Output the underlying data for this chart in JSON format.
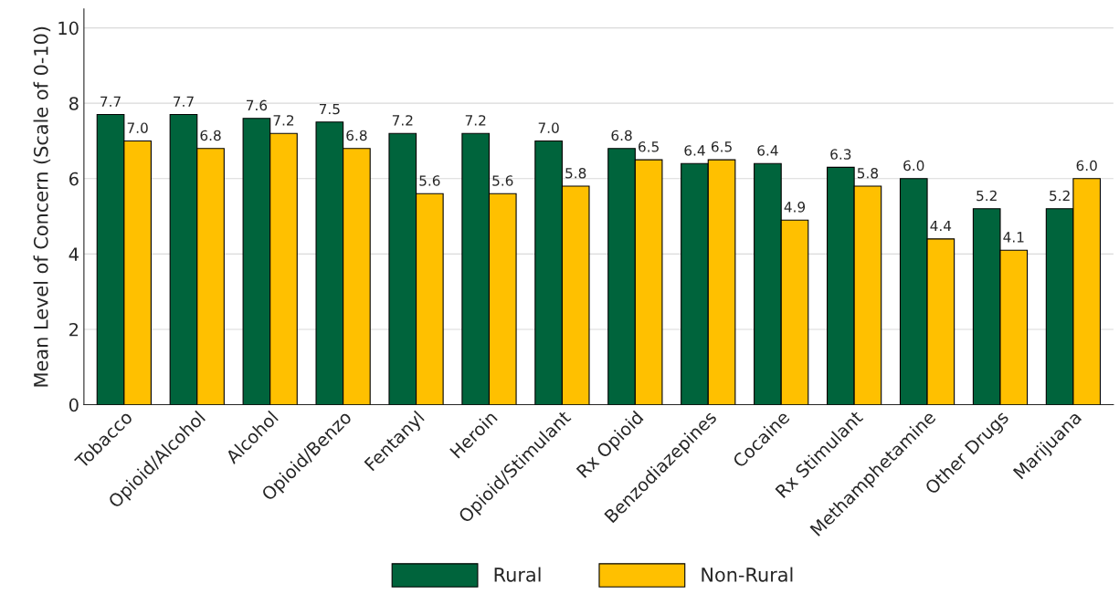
{
  "chart_data": {
    "type": "bar",
    "ylabel": "Mean Level of Concern (Scale of 0-10)",
    "categories": [
      "Tobacco",
      "Opioid/Alcohol",
      "Alcohol",
      "Opioid/Benzo",
      "Fentanyl",
      "Heroin",
      "Opioid/Stimulant",
      "Rx Opioid",
      "Benzodiazepines",
      "Cocaine",
      "Rx Stimulant",
      "Methamphetamine",
      "Other Drugs",
      "Marijuana"
    ],
    "series": [
      {
        "name": "Rural",
        "color": "#00643c",
        "values": [
          7.7,
          7.7,
          7.6,
          7.5,
          7.2,
          7.2,
          7.0,
          6.8,
          6.4,
          6.4,
          6.3,
          6.0,
          5.2,
          5.2
        ],
        "value_labels": [
          "7.7",
          "7.7",
          "7.6",
          "7.5",
          "7.2",
          "7.2",
          "7.0",
          "6.8",
          "6.4",
          "6.4",
          "6.3",
          "6.0",
          "5.2",
          "5.2"
        ]
      },
      {
        "name": "Non-Rural",
        "color": "#ffc000",
        "values": [
          7.0,
          6.8,
          7.2,
          6.8,
          5.6,
          5.6,
          5.8,
          6.5,
          6.5,
          4.9,
          5.8,
          4.4,
          4.1,
          6.0
        ],
        "value_labels": [
          "7.0",
          "6.8",
          "7.2",
          "6.8",
          "5.6",
          "5.6",
          "5.8",
          "6.5",
          "6.5",
          "4.9",
          "5.8",
          "4.4",
          "4.1",
          "6.0"
        ]
      }
    ],
    "ylim": [
      0,
      10.5
    ],
    "yticks": [
      0,
      2,
      4,
      6,
      8,
      10
    ],
    "grid": "y",
    "legend": "bottom"
  }
}
